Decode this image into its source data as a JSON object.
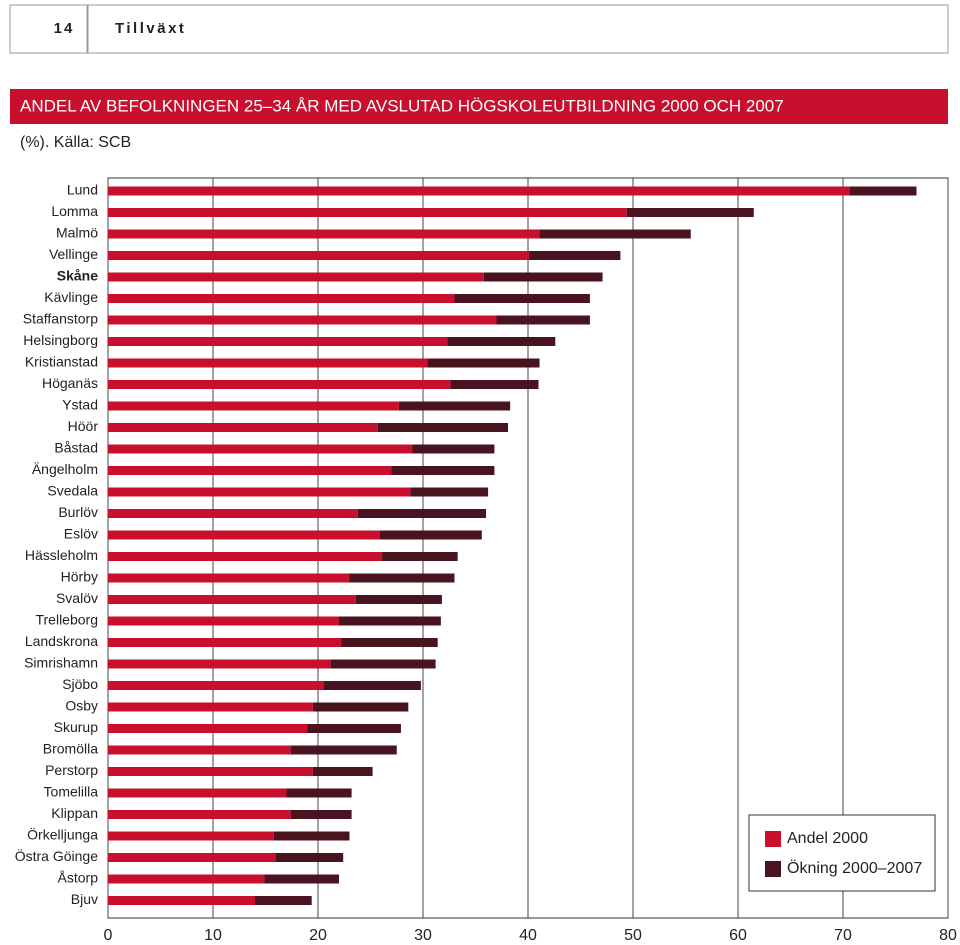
{
  "page_header": {
    "page_number": "14",
    "section": "Tillväxt"
  },
  "chart_data": {
    "type": "stacked-bar-horizontal",
    "title": "ANDEL AV BEFOLKNINGEN 25–34 ÅR MED AVSLUTAD HÖGSKOLEUTBILDNING 2000 OCH 2007",
    "subtitle": "(%). Källa: SCB",
    "categories": [
      "Lund",
      "Lomma",
      "Malmö",
      "Vellinge",
      "Skåne",
      "Kävlinge",
      "Staffanstorp",
      "Helsingborg",
      "Kristianstad",
      "Höganäs",
      "Ystad",
      "Höör",
      "Båstad",
      "Ängelholm",
      "Svedala",
      "Burlöv",
      "Eslöv",
      "Hässleholm",
      "Hörby",
      "Svalöv",
      "Trelleborg",
      "Landskrona",
      "Simrishamn",
      "Sjöbo",
      "Osby",
      "Skurup",
      "Bromölla",
      "Perstorp",
      "Tomelilla",
      "Klippan",
      "Örkelljunga",
      "Östra Göinge",
      "Åstorp",
      "Bjuv"
    ],
    "emphasized_categories": [
      4
    ],
    "series": [
      {
        "name": "Andel 2000",
        "color": "#c8102e",
        "values": [
          70.6,
          49.4,
          41.1,
          40.1,
          35.8,
          33.0,
          37.0,
          32.3,
          30.4,
          32.6,
          27.7,
          25.7,
          29.0,
          27.0,
          28.8,
          23.8,
          25.9,
          26.1,
          23.0,
          23.6,
          22.0,
          22.2,
          21.2,
          20.5,
          19.5,
          19.0,
          17.4,
          19.5,
          17.0,
          17.4,
          15.8,
          16.0,
          14.9,
          14.0
        ]
      },
      {
        "name": "Ökning 2000–2007",
        "color": "#4a1320",
        "values": [
          6.4,
          12.1,
          14.4,
          8.7,
          11.3,
          12.9,
          8.9,
          10.3,
          10.7,
          8.4,
          10.6,
          12.4,
          7.8,
          9.8,
          7.4,
          12.2,
          9.7,
          7.2,
          10.0,
          8.2,
          9.7,
          9.2,
          10.0,
          9.3,
          9.1,
          8.9,
          10.1,
          5.7,
          6.2,
          5.8,
          7.2,
          6.4,
          7.1,
          5.4
        ]
      }
    ],
    "xlim": [
      0,
      80
    ],
    "xticks": [
      0,
      10,
      20,
      30,
      40,
      50,
      60,
      70,
      80
    ],
    "grid": true,
    "legend": "lower-right"
  }
}
